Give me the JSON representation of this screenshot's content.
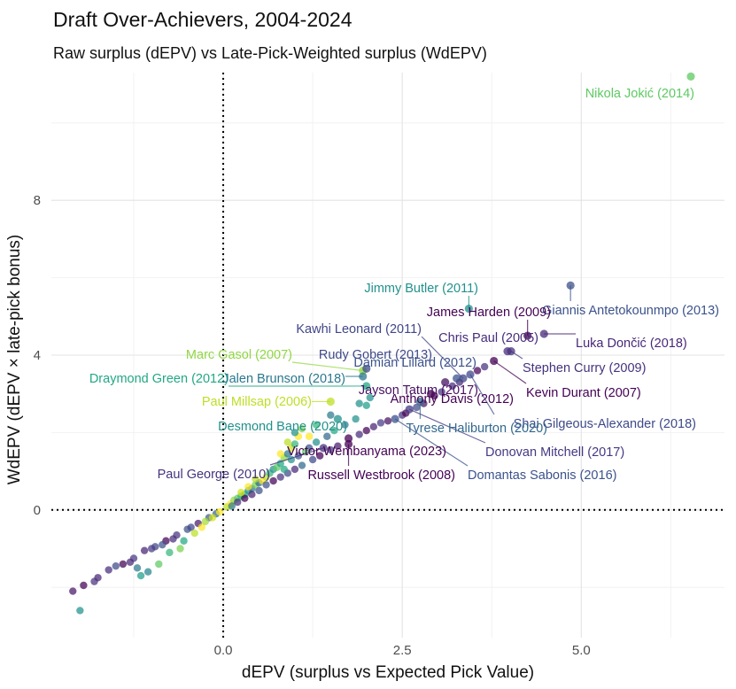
{
  "chart_data": {
    "type": "scatter",
    "title": "Draft Over-Achievers, 2004-2024",
    "subtitle": "Raw surplus (dEPV) vs Late-Pick-Weighted surplus (WdEPV)",
    "xlabel": "dEPV  (surplus vs Expected Pick Value)",
    "ylabel": "WdEPV (dEPV × late-pick bonus)",
    "xlim": [
      -2.4,
      7.0
    ],
    "ylim": [
      -3.3,
      11.3
    ],
    "x_ticks": [
      {
        "value": 0,
        "label": "0.0"
      },
      {
        "value": 2.5,
        "label": "2.5"
      },
      {
        "value": 5,
        "label": "5.0"
      }
    ],
    "y_ticks": [
      {
        "value": 0,
        "label": "0"
      },
      {
        "value": 4,
        "label": "4"
      },
      {
        "value": 8,
        "label": "8"
      }
    ],
    "grid": true,
    "reference_lines": [
      {
        "axis": "x",
        "value": 0,
        "style": "dotted"
      },
      {
        "axis": "y",
        "value": 0,
        "style": "dotted"
      }
    ],
    "labeled_points": [
      {
        "name": "Nikola Jokić (2014)",
        "x": 6.53,
        "y": 11.2,
        "color": "#5ec962"
      },
      {
        "name": "Giannis Antetokounmpo (2013)",
        "x": 4.85,
        "y": 5.8,
        "color": "#3b528b"
      },
      {
        "name": "Jimmy Butler (2011)",
        "x": 3.43,
        "y": 5.2,
        "color": "#21918c"
      },
      {
        "name": "James Harden (2009)",
        "x": 4.25,
        "y": 4.5,
        "color": "#440154"
      },
      {
        "name": "Luka Dončić (2018)",
        "x": 4.48,
        "y": 4.55,
        "color": "#482878"
      },
      {
        "name": "Chris Paul (2005)",
        "x": 3.97,
        "y": 4.1,
        "color": "#472c7a"
      },
      {
        "name": "Kawhi Leonard (2011)",
        "x": 3.35,
        "y": 3.4,
        "color": "#404688"
      },
      {
        "name": "Stephen Curry (2009)",
        "x": 4.02,
        "y": 4.1,
        "color": "#46337e"
      },
      {
        "name": "Marc Gasol (2007)",
        "x": 1.95,
        "y": 3.6,
        "color": "#90d743"
      },
      {
        "name": "Rudy Gobert (2013)",
        "x": 2.0,
        "y": 3.65,
        "color": "#3e4989"
      },
      {
        "name": "Damian Lillard (2012)",
        "x": 3.26,
        "y": 3.4,
        "color": "#3b528b"
      },
      {
        "name": "Kevin Durant (2007)",
        "x": 3.78,
        "y": 3.85,
        "color": "#440154"
      },
      {
        "name": "Draymond Green (2012)",
        "x": 2.0,
        "y": 3.2,
        "color": "#22a884"
      },
      {
        "name": "Jalen Brunson (2018)",
        "x": 1.95,
        "y": 3.45,
        "color": "#2a788e"
      },
      {
        "name": "Jayson Tatum (2017)",
        "x": 3.1,
        "y": 3.3,
        "color": "#471063"
      },
      {
        "name": "Anthony Davis (2012)",
        "x": 2.9,
        "y": 3.0,
        "color": "#440154"
      },
      {
        "name": "Paul Millsap (2006)",
        "x": 1.5,
        "y": 2.8,
        "color": "#bddf26"
      },
      {
        "name": "Shai Gilgeous-Alexander (2018)",
        "x": 3.45,
        "y": 3.5,
        "color": "#3e4a89"
      },
      {
        "name": "Desmond Bane (2020)",
        "x": 1.6,
        "y": 2.35,
        "color": "#21918c"
      },
      {
        "name": "Tyrese Haliburton (2020)",
        "x": 2.75,
        "y": 2.8,
        "color": "#31688e"
      },
      {
        "name": "Donovan Mitchell (2017)",
        "x": 2.6,
        "y": 2.6,
        "color": "#443983"
      },
      {
        "name": "Victor Wembanyama (2023)",
        "x": 1.75,
        "y": 1.85,
        "color": "#440154"
      },
      {
        "name": "Domantas Sabonis (2016)",
        "x": 2.4,
        "y": 2.35,
        "color": "#3b528b"
      },
      {
        "name": "Paul George (2010)",
        "x": 1.4,
        "y": 1.6,
        "color": "#46327e"
      },
      {
        "name": "Russell Westbrook (2008)",
        "x": 1.75,
        "y": 1.7,
        "color": "#440154"
      }
    ],
    "other_points": [
      {
        "x": -2.1,
        "y": -2.1,
        "color": "#481668"
      },
      {
        "x": -1.95,
        "y": -1.95,
        "color": "#440154"
      },
      {
        "x": -1.75,
        "y": -1.75,
        "color": "#482475"
      },
      {
        "x": -1.6,
        "y": -1.55,
        "color": "#472d7b"
      },
      {
        "x": -1.4,
        "y": -1.4,
        "color": "#440154"
      },
      {
        "x": -1.25,
        "y": -1.25,
        "color": "#453781"
      },
      {
        "x": -1.1,
        "y": -1.05,
        "color": "#482475"
      },
      {
        "x": -0.95,
        "y": -0.95,
        "color": "#414487"
      },
      {
        "x": -0.8,
        "y": -0.8,
        "color": "#440154"
      },
      {
        "x": -0.65,
        "y": -0.65,
        "color": "#46337f"
      },
      {
        "x": -0.5,
        "y": -0.5,
        "color": "#3b528b"
      },
      {
        "x": -0.35,
        "y": -0.35,
        "color": "#481a6c"
      },
      {
        "x": -0.2,
        "y": -0.2,
        "color": "#375a8c"
      },
      {
        "x": -0.1,
        "y": -0.1,
        "color": "#31688e"
      },
      {
        "x": -1.8,
        "y": -1.85,
        "color": "#46327e"
      },
      {
        "x": -1.5,
        "y": -1.45,
        "color": "#3e4989"
      },
      {
        "x": -1.3,
        "y": -1.35,
        "color": "#482878"
      },
      {
        "x": -1.0,
        "y": -1.0,
        "color": "#443a83"
      },
      {
        "x": -0.7,
        "y": -0.75,
        "color": "#472c7a"
      },
      {
        "x": -0.45,
        "y": -0.45,
        "color": "#404588"
      },
      {
        "x": -2.0,
        "y": -2.6,
        "color": "#21918c"
      },
      {
        "x": -1.2,
        "y": -1.5,
        "color": "#2a788e"
      },
      {
        "x": -1.05,
        "y": -1.6,
        "color": "#25848e"
      },
      {
        "x": -0.9,
        "y": -1.4,
        "color": "#5ec962"
      },
      {
        "x": -1.15,
        "y": -1.7,
        "color": "#1f9e89"
      },
      {
        "x": -0.75,
        "y": -1.1,
        "color": "#35b779"
      },
      {
        "x": -0.6,
        "y": -1.0,
        "color": "#7ad151"
      },
      {
        "x": -0.4,
        "y": -0.6,
        "color": "#bddf26"
      },
      {
        "x": -0.3,
        "y": -0.45,
        "color": "#fde725"
      },
      {
        "x": -0.55,
        "y": -0.8,
        "color": "#22a884"
      },
      {
        "x": -0.25,
        "y": -0.3,
        "color": "#a5db36"
      },
      {
        "x": -0.15,
        "y": -0.2,
        "color": "#d2e21b"
      },
      {
        "x": -0.85,
        "y": -0.9,
        "color": "#3b528b"
      },
      {
        "x": -0.05,
        "y": -0.05,
        "color": "#fde725"
      },
      {
        "x": 0.05,
        "y": 0.08,
        "color": "#bddf26"
      },
      {
        "x": 0.1,
        "y": 0.15,
        "color": "#fde725"
      },
      {
        "x": 0.15,
        "y": 0.25,
        "color": "#90d743"
      },
      {
        "x": 0.2,
        "y": 0.3,
        "color": "#5ec962"
      },
      {
        "x": 0.25,
        "y": 0.35,
        "color": "#35b779"
      },
      {
        "x": 0.3,
        "y": 0.4,
        "color": "#22a884"
      },
      {
        "x": 0.35,
        "y": 0.5,
        "color": "#21918c"
      },
      {
        "x": 0.4,
        "y": 0.55,
        "color": "#2a788e"
      },
      {
        "x": 0.45,
        "y": 0.65,
        "color": "#7ad151"
      },
      {
        "x": 0.5,
        "y": 0.7,
        "color": "#31688e"
      },
      {
        "x": 0.55,
        "y": 0.75,
        "color": "#fde725"
      },
      {
        "x": 0.6,
        "y": 0.85,
        "color": "#bddf26"
      },
      {
        "x": 0.65,
        "y": 0.95,
        "color": "#35b779"
      },
      {
        "x": 0.7,
        "y": 1.05,
        "color": "#21918c"
      },
      {
        "x": 0.75,
        "y": 1.1,
        "color": "#5ec962"
      },
      {
        "x": 0.8,
        "y": 1.2,
        "color": "#22a884"
      },
      {
        "x": 0.85,
        "y": 1.35,
        "color": "#90d743"
      },
      {
        "x": 0.9,
        "y": 1.45,
        "color": "#2a788e"
      },
      {
        "x": 0.95,
        "y": 1.6,
        "color": "#d2e21b"
      },
      {
        "x": 1.0,
        "y": 1.7,
        "color": "#35b779"
      },
      {
        "x": 1.05,
        "y": 1.9,
        "color": "#fde725"
      },
      {
        "x": 1.1,
        "y": 2.1,
        "color": "#7ad151"
      },
      {
        "x": 1.0,
        "y": 2.0,
        "color": "#21918c"
      },
      {
        "x": 0.9,
        "y": 1.75,
        "color": "#bddf26"
      },
      {
        "x": 0.8,
        "y": 1.45,
        "color": "#fde725"
      },
      {
        "x": 1.2,
        "y": 1.6,
        "color": "#3b528b"
      },
      {
        "x": 1.3,
        "y": 1.75,
        "color": "#21918c"
      },
      {
        "x": 1.45,
        "y": 1.9,
        "color": "#31688e"
      },
      {
        "x": 1.55,
        "y": 2.05,
        "color": "#22a884"
      },
      {
        "x": 1.7,
        "y": 2.2,
        "color": "#2a788e"
      },
      {
        "x": 1.85,
        "y": 2.35,
        "color": "#21918c"
      },
      {
        "x": 1.9,
        "y": 2.75,
        "color": "#21918c"
      },
      {
        "x": 2.0,
        "y": 2.7,
        "color": "#1f9e89"
      },
      {
        "x": 1.3,
        "y": 2.2,
        "color": "#35b779"
      },
      {
        "x": 0.6,
        "y": 0.65,
        "color": "#3b528b"
      },
      {
        "x": 0.7,
        "y": 0.75,
        "color": "#440154"
      },
      {
        "x": 0.8,
        "y": 0.85,
        "color": "#46337e"
      },
      {
        "x": 0.9,
        "y": 0.95,
        "color": "#404688"
      },
      {
        "x": 1.0,
        "y": 1.05,
        "color": "#482878"
      },
      {
        "x": 1.1,
        "y": 1.15,
        "color": "#31688e"
      },
      {
        "x": 1.25,
        "y": 1.3,
        "color": "#3e4989"
      },
      {
        "x": 1.35,
        "y": 1.4,
        "color": "#440154"
      },
      {
        "x": 1.5,
        "y": 1.55,
        "color": "#453781"
      },
      {
        "x": 1.6,
        "y": 1.65,
        "color": "#481a6c"
      },
      {
        "x": 1.9,
        "y": 1.95,
        "color": "#472c7a"
      },
      {
        "x": 2.0,
        "y": 2.05,
        "color": "#440154"
      },
      {
        "x": 2.1,
        "y": 2.15,
        "color": "#482475"
      },
      {
        "x": 2.2,
        "y": 2.25,
        "color": "#443983"
      },
      {
        "x": 2.3,
        "y": 2.3,
        "color": "#471063"
      },
      {
        "x": 2.5,
        "y": 2.45,
        "color": "#46327e"
      },
      {
        "x": 2.55,
        "y": 2.5,
        "color": "#440154"
      },
      {
        "x": 2.7,
        "y": 2.65,
        "color": "#3e4a89"
      },
      {
        "x": 2.8,
        "y": 2.75,
        "color": "#481668"
      },
      {
        "x": 2.95,
        "y": 2.95,
        "color": "#440154"
      },
      {
        "x": 3.05,
        "y": 3.05,
        "color": "#46337e"
      },
      {
        "x": 3.2,
        "y": 3.2,
        "color": "#472d7b"
      },
      {
        "x": 3.3,
        "y": 3.3,
        "color": "#482878"
      },
      {
        "x": 3.55,
        "y": 3.6,
        "color": "#440154"
      },
      {
        "x": 3.65,
        "y": 3.7,
        "color": "#46327e"
      },
      {
        "x": 0.3,
        "y": 0.3,
        "color": "#440154"
      },
      {
        "x": 0.4,
        "y": 0.4,
        "color": "#482475"
      },
      {
        "x": 0.5,
        "y": 0.5,
        "color": "#3b528b"
      },
      {
        "x": 0.2,
        "y": 0.2,
        "color": "#46337f"
      },
      {
        "x": 0.12,
        "y": 0.1,
        "color": "#2a788e"
      },
      {
        "x": 1.15,
        "y": 1.5,
        "color": "#5ec962"
      },
      {
        "x": 1.2,
        "y": 1.9,
        "color": "#fde725"
      },
      {
        "x": 0.95,
        "y": 1.3,
        "color": "#21918c"
      },
      {
        "x": 0.85,
        "y": 1.05,
        "color": "#22a884"
      },
      {
        "x": 2.05,
        "y": 2.9,
        "color": "#21918c"
      },
      {
        "x": 1.5,
        "y": 2.45,
        "color": "#2a788e"
      },
      {
        "x": 1.05,
        "y": 1.4,
        "color": "#3b528b"
      },
      {
        "x": 0.35,
        "y": 0.6,
        "color": "#fde725"
      },
      {
        "x": 0.25,
        "y": 0.45,
        "color": "#d2e21b"
      },
      {
        "x": 0.45,
        "y": 0.8,
        "color": "#bddf26"
      }
    ]
  }
}
